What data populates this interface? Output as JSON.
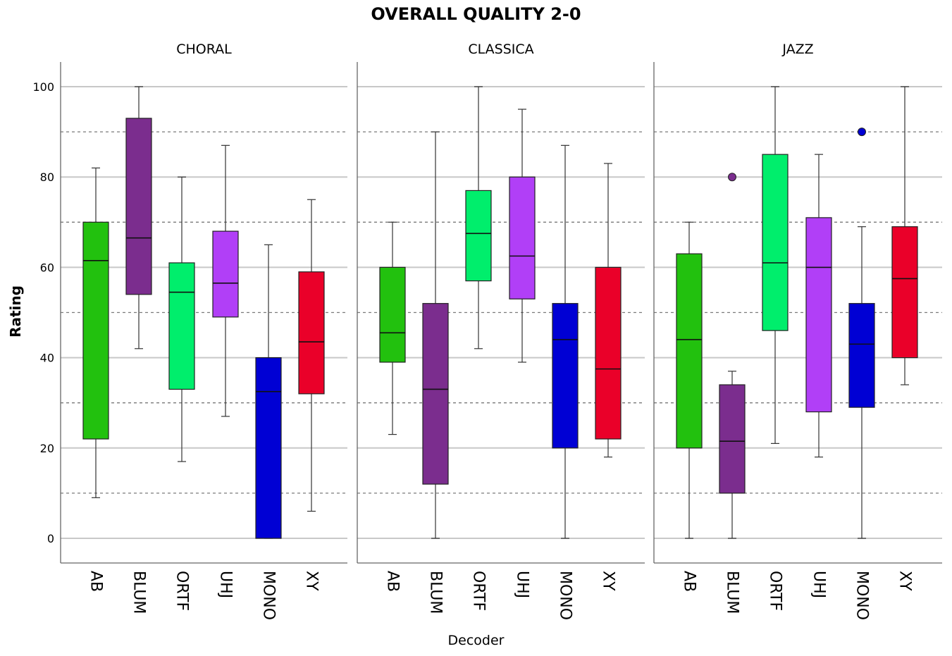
{
  "chart_data": {
    "type": "boxplot",
    "title": "OVERALL QUALITY 2-0",
    "xlabel": "Decoder",
    "ylabel": "Rating",
    "ylim": [
      -5,
      105
    ],
    "yticks": [
      0,
      20,
      40,
      60,
      80,
      100
    ],
    "dashed_gridlines": [
      10,
      30,
      50,
      70,
      90
    ],
    "categories": [
      "AB",
      "BLUM",
      "ORTF",
      "UHJ",
      "MONO",
      "XY"
    ],
    "colors": {
      "AB": "#22c10e",
      "BLUM": "#7b2d8e",
      "ORTF": "#00ee6c",
      "UHJ": "#b13ff7",
      "MONO": "#0000d4",
      "XY": "#ea0029"
    },
    "panels": [
      {
        "name": "CHORAL",
        "boxes": [
          {
            "label": "AB",
            "min": 9,
            "q1": 22,
            "median": 61.5,
            "q3": 70,
            "max": 82,
            "outliers": []
          },
          {
            "label": "BLUM",
            "min": 42,
            "q1": 54,
            "median": 66.5,
            "q3": 93,
            "max": 100,
            "outliers": []
          },
          {
            "label": "ORTF",
            "min": 17,
            "q1": 33,
            "median": 54.5,
            "q3": 61,
            "max": 80,
            "outliers": []
          },
          {
            "label": "UHJ",
            "min": 27,
            "q1": 49,
            "median": 56.5,
            "q3": 68,
            "max": 87,
            "outliers": []
          },
          {
            "label": "MONO",
            "min": 0,
            "q1": 0,
            "median": 32.5,
            "q3": 40,
            "max": 65,
            "outliers": []
          },
          {
            "label": "XY",
            "min": 6,
            "q1": 32,
            "median": 43.5,
            "q3": 59,
            "max": 75,
            "outliers": []
          }
        ]
      },
      {
        "name": "CLASSICA",
        "boxes": [
          {
            "label": "AB",
            "min": 23,
            "q1": 39,
            "median": 45.5,
            "q3": 60,
            "max": 70,
            "outliers": []
          },
          {
            "label": "BLUM",
            "min": 0,
            "q1": 12,
            "median": 33,
            "q3": 52,
            "max": 90,
            "outliers": []
          },
          {
            "label": "ORTF",
            "min": 42,
            "q1": 57,
            "median": 67.5,
            "q3": 77,
            "max": 100,
            "outliers": []
          },
          {
            "label": "UHJ",
            "min": 39,
            "q1": 53,
            "median": 62.5,
            "q3": 80,
            "max": 95,
            "outliers": []
          },
          {
            "label": "MONO",
            "min": 0,
            "q1": 20,
            "median": 44,
            "q3": 52,
            "max": 87,
            "outliers": []
          },
          {
            "label": "XY",
            "min": 18,
            "q1": 22,
            "median": 37.5,
            "q3": 60,
            "max": 83,
            "outliers": []
          }
        ]
      },
      {
        "name": "JAZZ",
        "boxes": [
          {
            "label": "AB",
            "min": 0,
            "q1": 20,
            "median": 44,
            "q3": 63,
            "max": 70,
            "outliers": []
          },
          {
            "label": "BLUM",
            "min": 0,
            "q1": 10,
            "median": 21.5,
            "q3": 34,
            "max": 37,
            "outliers": [
              80
            ]
          },
          {
            "label": "ORTF",
            "min": 21,
            "q1": 46,
            "median": 61,
            "q3": 85,
            "max": 100,
            "outliers": []
          },
          {
            "label": "UHJ",
            "min": 18,
            "q1": 28,
            "median": 60,
            "q3": 71,
            "max": 85,
            "outliers": []
          },
          {
            "label": "MONO",
            "min": 0,
            "q1": 29,
            "median": 43,
            "q3": 52,
            "max": 69,
            "outliers": [
              90
            ]
          },
          {
            "label": "XY",
            "min": 34,
            "q1": 40,
            "median": 57.5,
            "q3": 69,
            "max": 100,
            "outliers": []
          }
        ]
      }
    ]
  }
}
